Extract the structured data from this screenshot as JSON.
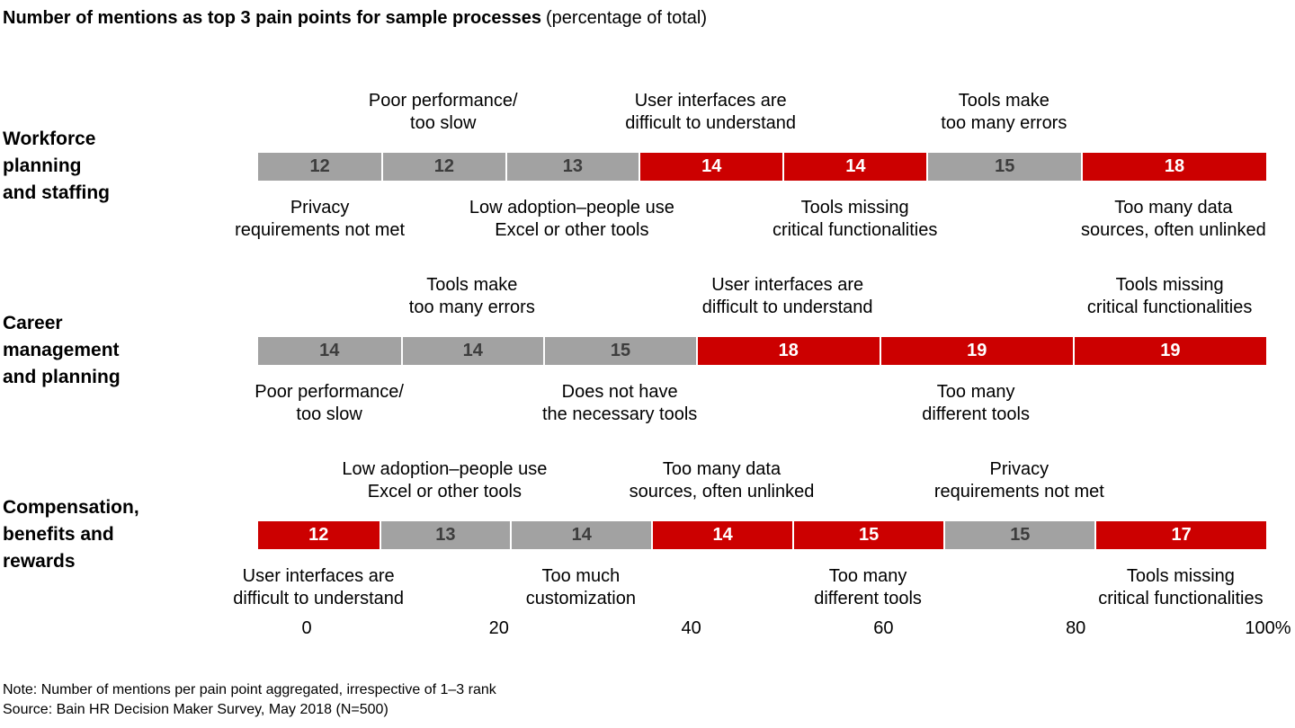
{
  "title": {
    "bold": "Number of mentions as top 3 pain points for sample processes",
    "normal": "(percentage of total)"
  },
  "colors": {
    "red": "#cc0000",
    "gray": "#a2a2a2",
    "value_on_gray": "#3d3d3d",
    "value_on_red": "#ffffff",
    "divider": "#ffffff"
  },
  "axis": {
    "ticks": [
      "0",
      "20",
      "40",
      "60",
      "80",
      "100%"
    ]
  },
  "note": "Note: Number of mentions per pain point aggregated, irrespective of 1–3 rank",
  "source": "Source: Bain HR Decision Maker Survey, May 2018 (N=500)",
  "chart_data": {
    "type": "bar",
    "stacked": true,
    "orientation": "horizontal",
    "title": "Number of mentions as top 3 pain points for sample processes (percentage of total)",
    "xlabel": "percentage of total",
    "xlim": [
      0,
      100
    ],
    "rows": [
      {
        "label": "Workforce\nplanning\nand staffing",
        "segments": [
          {
            "value": 12,
            "color": "gray",
            "label": "Privacy\nrequirements not met",
            "label_position": "below"
          },
          {
            "value": 12,
            "color": "gray",
            "label": "Poor performance/\ntoo slow",
            "label_position": "above"
          },
          {
            "value": 13,
            "color": "gray",
            "label": "Low adoption–people use\nExcel or other tools",
            "label_position": "below"
          },
          {
            "value": 14,
            "color": "red",
            "label": "User interfaces are\ndifficult to understand",
            "label_position": "above"
          },
          {
            "value": 14,
            "color": "red",
            "label": "Tools missing\ncritical functionalities",
            "label_position": "below"
          },
          {
            "value": 15,
            "color": "gray",
            "label": "Tools make\ntoo many errors",
            "label_position": "above"
          },
          {
            "value": 18,
            "color": "red",
            "label": "Too many data\nsources, often unlinked",
            "label_position": "below"
          }
        ]
      },
      {
        "label": "Career\nmanagement\nand planning",
        "segments": [
          {
            "value": 14,
            "color": "gray",
            "label": "Poor performance/\ntoo slow",
            "label_position": "below"
          },
          {
            "value": 14,
            "color": "gray",
            "label": "Tools make\ntoo many errors",
            "label_position": "above"
          },
          {
            "value": 15,
            "color": "gray",
            "label": "Does not have\nthe necessary tools",
            "label_position": "below"
          },
          {
            "value": 18,
            "color": "red",
            "label": "User interfaces are\ndifficult to understand",
            "label_position": "above"
          },
          {
            "value": 19,
            "color": "red",
            "label": "Too many\ndifferent tools",
            "label_position": "below"
          },
          {
            "value": 19,
            "color": "red",
            "label": "Tools missing\ncritical functionalities",
            "label_position": "above"
          }
        ]
      },
      {
        "label": "Compensation,\nbenefits and\nrewards",
        "segments": [
          {
            "value": 12,
            "color": "red",
            "label": "User interfaces are\ndifficult to understand",
            "label_position": "below"
          },
          {
            "value": 13,
            "color": "gray",
            "label": "Low adoption–people use\nExcel or other tools",
            "label_position": "above"
          },
          {
            "value": 14,
            "color": "gray",
            "label": "Too much\ncustomization",
            "label_position": "below"
          },
          {
            "value": 14,
            "color": "red",
            "label": "Too many data\nsources, often unlinked",
            "label_position": "above"
          },
          {
            "value": 15,
            "color": "red",
            "label": "Too many\ndifferent tools",
            "label_position": "below"
          },
          {
            "value": 15,
            "color": "gray",
            "label": "Privacy\nrequirements not met",
            "label_position": "above"
          },
          {
            "value": 17,
            "color": "red",
            "label": "Tools missing\ncritical functionalities",
            "label_position": "below"
          }
        ]
      }
    ]
  }
}
